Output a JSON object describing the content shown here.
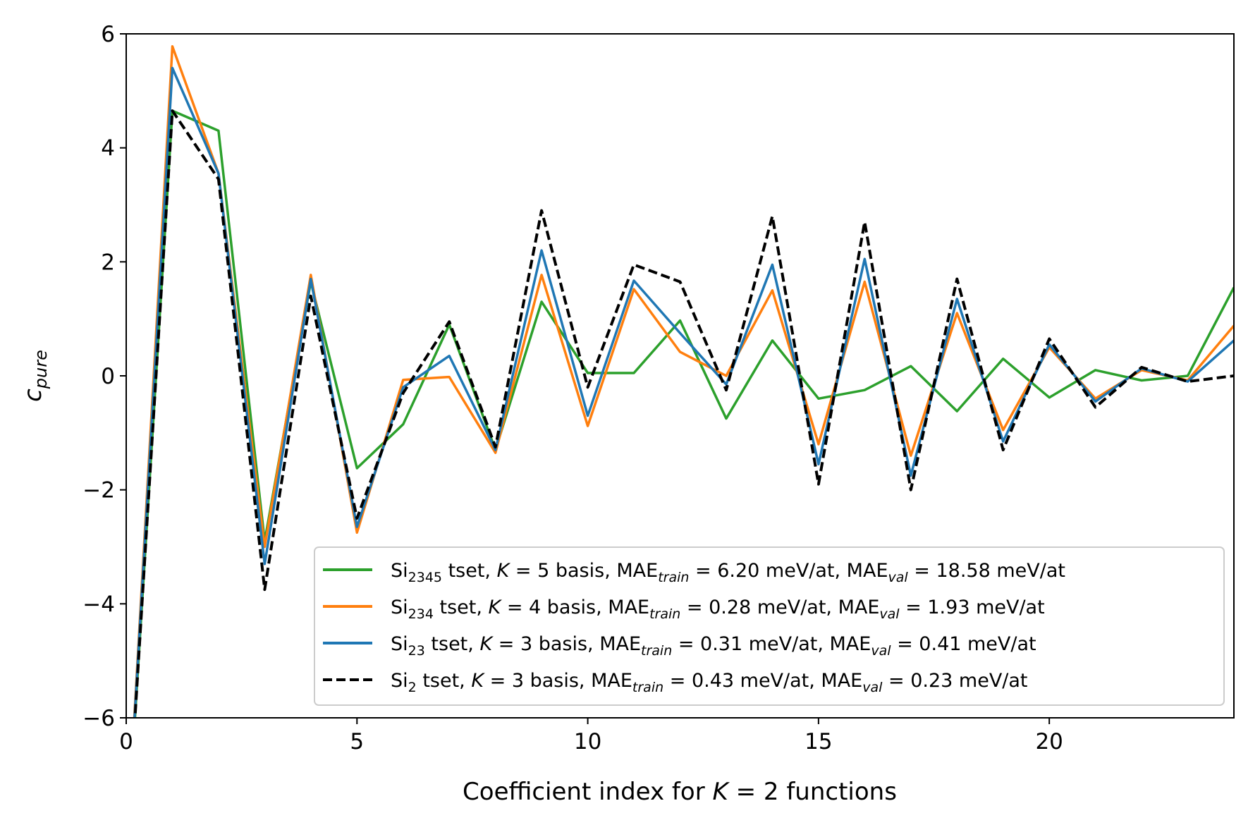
{
  "chart_data": {
    "type": "line",
    "xlabel": "Coefficient index for K = 2 functions",
    "ylabel": "c_pure",
    "xlim": [
      0,
      24
    ],
    "ylim": [
      -6,
      6
    ],
    "xticks": [
      0,
      5,
      10,
      15,
      20
    ],
    "xtick_labels": [
      "0",
      "5",
      "10",
      "15",
      "20"
    ],
    "yticks": [
      -6,
      -4,
      -2,
      0,
      2,
      4,
      6
    ],
    "ytick_labels": [
      "−6",
      "−4",
      "−2",
      "0",
      "2",
      "4",
      "6"
    ],
    "grid": false,
    "legend_position": "lower-right",
    "x": [
      0,
      1,
      2,
      3,
      4,
      5,
      6,
      7,
      8,
      9,
      10,
      11,
      12,
      13,
      14,
      15,
      16,
      17,
      18,
      19,
      20,
      21,
      22,
      23,
      24
    ],
    "series": [
      {
        "name": "Si2345 tset, K = 5 basis, MAEtrain = 6.20 meV/at, MAEval = 18.58 meV/at",
        "legend_parts": {
          "sub": "2345",
          "K": "5",
          "train": "6.20",
          "val": "18.58"
        },
        "color": "#2ca02c",
        "dashed": false,
        "values": [
          -8.5,
          4.65,
          4.3,
          -2.9,
          1.65,
          -1.62,
          -0.85,
          0.9,
          -1.3,
          1.3,
          0.05,
          0.05,
          0.97,
          -0.75,
          0.62,
          -0.4,
          -0.25,
          0.17,
          -0.62,
          0.3,
          -0.38,
          0.1,
          -0.08,
          0.0,
          1.55
        ]
      },
      {
        "name": "Si234 tset, K = 4 basis, MAEtrain = 0.28 meV/at, MAEval = 1.93 meV/at",
        "legend_parts": {
          "sub": "234",
          "K": "4",
          "train": "0.28",
          "val": "1.93"
        },
        "color": "#ff7f0e",
        "dashed": false,
        "values": [
          -8.5,
          5.78,
          3.55,
          -3.0,
          1.77,
          -2.75,
          -0.07,
          -0.02,
          -1.35,
          1.77,
          -0.88,
          1.52,
          0.42,
          0.0,
          1.5,
          -1.2,
          1.65,
          -1.4,
          1.1,
          -0.95,
          0.5,
          -0.4,
          0.1,
          -0.08,
          0.88
        ]
      },
      {
        "name": "Si23 tset, K = 3 basis, MAEtrain = 0.31 meV/at, MAEval = 0.41 meV/at",
        "legend_parts": {
          "sub": "23",
          "K": "3",
          "train": "0.31",
          "val": "0.41"
        },
        "color": "#1f77b4",
        "dashed": false,
        "values": [
          -8.5,
          5.4,
          3.55,
          -3.3,
          1.7,
          -2.65,
          -0.2,
          0.35,
          -1.3,
          2.2,
          -0.7,
          1.67,
          0.75,
          -0.15,
          1.95,
          -1.55,
          2.05,
          -1.75,
          1.35,
          -1.15,
          0.55,
          -0.45,
          0.13,
          -0.1,
          0.62
        ]
      },
      {
        "name": "Si2 tset, K = 3 basis, MAEtrain = 0.43 meV/at, MAEval = 0.23 meV/at",
        "legend_parts": {
          "sub": "2",
          "K": "3",
          "train": "0.43",
          "val": "0.23"
        },
        "color": "#000000",
        "dashed": true,
        "values": [
          -8.5,
          4.65,
          3.45,
          -3.75,
          1.4,
          -2.5,
          -0.3,
          0.95,
          -1.25,
          2.9,
          -0.2,
          1.95,
          1.65,
          -0.25,
          2.8,
          -1.9,
          2.7,
          -2.0,
          1.7,
          -1.3,
          0.65,
          -0.55,
          0.15,
          -0.1,
          0.0
        ]
      }
    ]
  }
}
